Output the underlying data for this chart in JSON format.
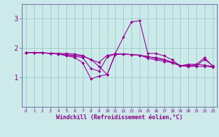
{
  "title": "",
  "xlabel": "Windchill (Refroidissement éolien,°C)",
  "bg_color": "#cceaea",
  "line_color": "#990099",
  "grid_color": "#99cccc",
  "spine_color": "#7777aa",
  "xlim": [
    -0.5,
    23.5
  ],
  "ylim": [
    0.0,
    3.5
  ],
  "yticks": [
    1,
    2,
    3
  ],
  "xtick_labels": [
    "0",
    "1",
    "2",
    "3",
    "4",
    "5",
    "6",
    "7",
    "8",
    "9",
    "10",
    "11",
    "12",
    "13",
    "14",
    "15",
    "16",
    "17",
    "18",
    "19",
    "20",
    "21",
    "22",
    "23"
  ],
  "series": [
    [
      1.85,
      1.85,
      1.85,
      1.82,
      1.82,
      1.82,
      1.8,
      1.75,
      1.6,
      1.52,
      1.76,
      1.8,
      1.8,
      1.78,
      1.76,
      1.66,
      1.6,
      1.55,
      1.5,
      1.4,
      1.45,
      1.45,
      1.42,
      1.38
    ],
    [
      1.85,
      1.85,
      1.84,
      1.83,
      1.8,
      1.78,
      1.76,
      1.72,
      1.62,
      1.38,
      1.1,
      1.78,
      1.8,
      1.78,
      1.76,
      1.72,
      1.64,
      1.6,
      1.52,
      1.4,
      1.42,
      1.4,
      1.62,
      1.4
    ],
    [
      1.85,
      1.85,
      1.84,
      1.82,
      1.8,
      1.74,
      1.68,
      1.5,
      0.95,
      1.05,
      1.1,
      1.82,
      2.38,
      2.9,
      2.93,
      1.82,
      1.82,
      1.74,
      1.6,
      1.4,
      1.38,
      1.45,
      1.68,
      1.38
    ],
    [
      1.85,
      1.85,
      1.84,
      1.82,
      1.8,
      1.76,
      1.72,
      1.68,
      1.3,
      1.22,
      1.7,
      1.8,
      1.8,
      1.78,
      1.76,
      1.7,
      1.68,
      1.62,
      1.52,
      1.4,
      1.38,
      1.38,
      1.38,
      1.35
    ]
  ]
}
